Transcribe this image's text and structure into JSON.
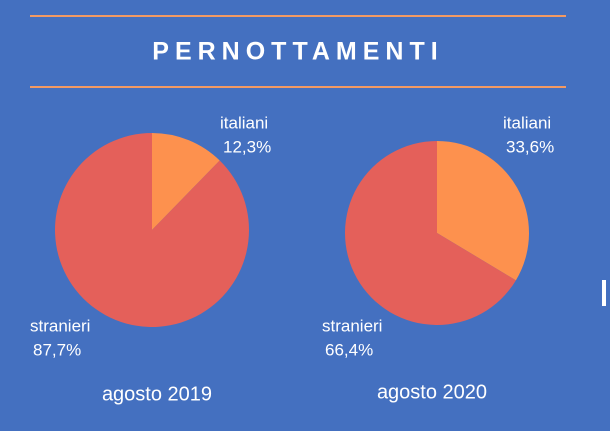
{
  "title": "PERNOTTAMENTI",
  "chart_data": [
    {
      "type": "pie",
      "subtitle": "agosto 2019",
      "categories": [
        "italiani",
        "stranieri"
      ],
      "values": [
        12.3,
        87.7
      ],
      "value_labels": [
        "12,3%",
        "87,7%"
      ],
      "colors": [
        "#fd914e",
        "#e4605a"
      ]
    },
    {
      "type": "pie",
      "subtitle": "agosto 2020",
      "categories": [
        "italiani",
        "stranieri"
      ],
      "values": [
        33.6,
        66.4
      ],
      "value_labels": [
        "33,6%",
        "66,4%"
      ],
      "colors": [
        "#fd914e",
        "#e4605a"
      ]
    }
  ]
}
